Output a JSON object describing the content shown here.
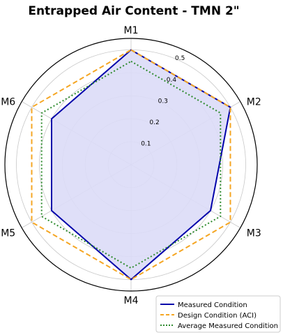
{
  "chart_data": {
    "type": "radar",
    "title": "Entrapped Air Content - TMN 2\"",
    "categories": [
      "M1",
      "M2",
      "M3",
      "M4",
      "M5",
      "M6"
    ],
    "r_ticks": [
      "0.1",
      "0.2",
      "0.3",
      "0.4",
      "0.5"
    ],
    "r_tick_values": [
      0.1,
      0.2,
      0.3,
      0.4,
      0.5
    ],
    "rlim": [
      0,
      0.55
    ],
    "grid": true,
    "legend_position": "lower-right",
    "series": [
      {
        "name": "Measured Condition",
        "values": [
          0.5,
          0.5,
          0.4,
          0.5,
          0.4,
          0.4
        ],
        "color": "#0000aa",
        "style": "solid",
        "fill": "#dcdcf7"
      },
      {
        "name": "Design Condition (ACI)",
        "values": [
          0.5,
          0.5,
          0.5,
          0.5,
          0.5,
          0.5
        ],
        "color": "#f5a623",
        "style": "dashed"
      },
      {
        "name": "Average Measured Condition",
        "values": [
          0.45,
          0.45,
          0.45,
          0.45,
          0.45,
          0.45
        ],
        "color": "#2e8b2e",
        "style": "dotted"
      }
    ]
  }
}
